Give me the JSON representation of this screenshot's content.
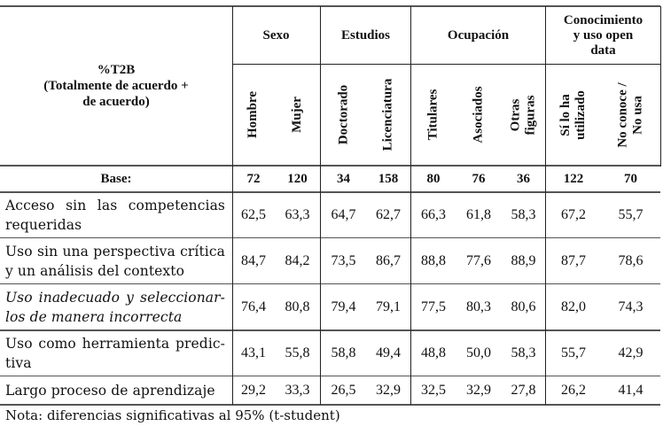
{
  "table": {
    "corner_header": {
      "line1": "%T2B",
      "line2": "(Totalmente de acuerdo +",
      "line3": "de acuerdo)"
    },
    "groups": [
      {
        "label": "Sexo",
        "columns": [
          "Hombre",
          "Mujer"
        ]
      },
      {
        "label": "Estudios",
        "columns": [
          "Doctorado",
          "Licenciatura"
        ]
      },
      {
        "label": "Ocupación",
        "columns": [
          "Titulares",
          "Asociados",
          "Otras figuras"
        ]
      },
      {
        "label": "Conocimiento y uso open data",
        "columns": [
          "Sí lo ha utilizado",
          "No conoce / No usa"
        ]
      }
    ],
    "group_labels": {
      "sexo": "Sexo",
      "estudios": "Estudios",
      "ocupacion": "Ocupación",
      "conocimiento_l1": "Conocimiento",
      "conocimiento_l2": "y uso open",
      "conocimiento_l3": "data"
    },
    "column_labels": {
      "hombre": "Hombre",
      "mujer": "Mujer",
      "doctorado": "Doctorado",
      "licenciatura": "Licenciatura",
      "titulares": "Titulares",
      "asociados": "Asociados",
      "otras_l1": "Otras",
      "otras_l2": "figuras",
      "si_l1": "Sí lo ha",
      "si_l2": "utilizado",
      "no_l1": "No conoce /",
      "no_l2": "No usa"
    },
    "base": {
      "label": "Base:",
      "values": [
        "72",
        "120",
        "34",
        "158",
        "80",
        "76",
        "36",
        "122",
        "70"
      ]
    },
    "rows": [
      {
        "label_l1": "Acceso sin las competencias",
        "label_l2": "requeridas",
        "italic": false,
        "values": [
          "62,5",
          "63,3",
          "64,7",
          "62,7",
          "66,3",
          "61,8",
          "58,3",
          "67,2",
          "55,7"
        ]
      },
      {
        "label_l1": "Uso sin una perspectiva crítica",
        "label_l2": "y un análisis del contexto",
        "italic": false,
        "values": [
          "84,7",
          "84,2",
          "73,5",
          "86,7",
          "88,8",
          "77,6",
          "88,9",
          "87,7",
          "78,6"
        ]
      },
      {
        "label_l1": "Uso inadecuado y seleccionar-",
        "label_l2": "los de manera incorrecta",
        "italic": true,
        "values": [
          "76,4",
          "80,8",
          "79,4",
          "79,1",
          "77,5",
          "80,3",
          "80,6",
          "82,0",
          "74,3"
        ]
      },
      {
        "label_l1": "Uso como herramienta predic-",
        "label_l2": "tiva",
        "italic": false,
        "values": [
          "43,1",
          "55,8",
          "58,8",
          "49,4",
          "48,8",
          "50,0",
          "58,3",
          "55,7",
          "42,9"
        ]
      },
      {
        "label_l1": "Largo proceso de aprendizaje",
        "label_l2": "",
        "italic": false,
        "values": [
          "29,2",
          "33,3",
          "26,5",
          "32,9",
          "32,5",
          "32,9",
          "27,8",
          "26,2",
          "41,4"
        ]
      }
    ]
  },
  "note": "Nota:  diferencias significativas al 95% (t-student)"
}
